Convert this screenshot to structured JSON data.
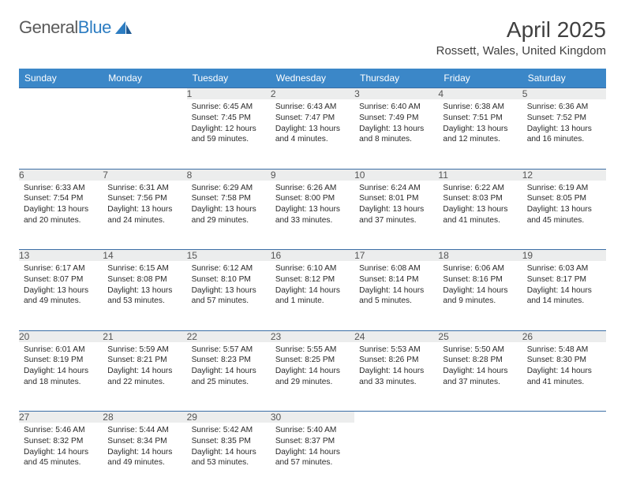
{
  "brand": {
    "text1": "General",
    "text2": "Blue"
  },
  "title": "April 2025",
  "location": "Rossett, Wales, United Kingdom",
  "colors": {
    "header_bg": "#3b87c8",
    "header_text": "#ffffff",
    "daynum_bg": "#eceded",
    "row_border": "#3b6ea5",
    "logo_blue": "#2d7dc2",
    "text": "#252525"
  },
  "day_headers": [
    "Sunday",
    "Monday",
    "Tuesday",
    "Wednesday",
    "Thursday",
    "Friday",
    "Saturday"
  ],
  "weeks": [
    [
      null,
      null,
      {
        "n": "1",
        "sr": "6:45 AM",
        "ss": "7:45 PM",
        "dl": "12 hours and 59 minutes."
      },
      {
        "n": "2",
        "sr": "6:43 AM",
        "ss": "7:47 PM",
        "dl": "13 hours and 4 minutes."
      },
      {
        "n": "3",
        "sr": "6:40 AM",
        "ss": "7:49 PM",
        "dl": "13 hours and 8 minutes."
      },
      {
        "n": "4",
        "sr": "6:38 AM",
        "ss": "7:51 PM",
        "dl": "13 hours and 12 minutes."
      },
      {
        "n": "5",
        "sr": "6:36 AM",
        "ss": "7:52 PM",
        "dl": "13 hours and 16 minutes."
      }
    ],
    [
      {
        "n": "6",
        "sr": "6:33 AM",
        "ss": "7:54 PM",
        "dl": "13 hours and 20 minutes."
      },
      {
        "n": "7",
        "sr": "6:31 AM",
        "ss": "7:56 PM",
        "dl": "13 hours and 24 minutes."
      },
      {
        "n": "8",
        "sr": "6:29 AM",
        "ss": "7:58 PM",
        "dl": "13 hours and 29 minutes."
      },
      {
        "n": "9",
        "sr": "6:26 AM",
        "ss": "8:00 PM",
        "dl": "13 hours and 33 minutes."
      },
      {
        "n": "10",
        "sr": "6:24 AM",
        "ss": "8:01 PM",
        "dl": "13 hours and 37 minutes."
      },
      {
        "n": "11",
        "sr": "6:22 AM",
        "ss": "8:03 PM",
        "dl": "13 hours and 41 minutes."
      },
      {
        "n": "12",
        "sr": "6:19 AM",
        "ss": "8:05 PM",
        "dl": "13 hours and 45 minutes."
      }
    ],
    [
      {
        "n": "13",
        "sr": "6:17 AM",
        "ss": "8:07 PM",
        "dl": "13 hours and 49 minutes."
      },
      {
        "n": "14",
        "sr": "6:15 AM",
        "ss": "8:08 PM",
        "dl": "13 hours and 53 minutes."
      },
      {
        "n": "15",
        "sr": "6:12 AM",
        "ss": "8:10 PM",
        "dl": "13 hours and 57 minutes."
      },
      {
        "n": "16",
        "sr": "6:10 AM",
        "ss": "8:12 PM",
        "dl": "14 hours and 1 minute."
      },
      {
        "n": "17",
        "sr": "6:08 AM",
        "ss": "8:14 PM",
        "dl": "14 hours and 5 minutes."
      },
      {
        "n": "18",
        "sr": "6:06 AM",
        "ss": "8:16 PM",
        "dl": "14 hours and 9 minutes."
      },
      {
        "n": "19",
        "sr": "6:03 AM",
        "ss": "8:17 PM",
        "dl": "14 hours and 14 minutes."
      }
    ],
    [
      {
        "n": "20",
        "sr": "6:01 AM",
        "ss": "8:19 PM",
        "dl": "14 hours and 18 minutes."
      },
      {
        "n": "21",
        "sr": "5:59 AM",
        "ss": "8:21 PM",
        "dl": "14 hours and 22 minutes."
      },
      {
        "n": "22",
        "sr": "5:57 AM",
        "ss": "8:23 PM",
        "dl": "14 hours and 25 minutes."
      },
      {
        "n": "23",
        "sr": "5:55 AM",
        "ss": "8:25 PM",
        "dl": "14 hours and 29 minutes."
      },
      {
        "n": "24",
        "sr": "5:53 AM",
        "ss": "8:26 PM",
        "dl": "14 hours and 33 minutes."
      },
      {
        "n": "25",
        "sr": "5:50 AM",
        "ss": "8:28 PM",
        "dl": "14 hours and 37 minutes."
      },
      {
        "n": "26",
        "sr": "5:48 AM",
        "ss": "8:30 PM",
        "dl": "14 hours and 41 minutes."
      }
    ],
    [
      {
        "n": "27",
        "sr": "5:46 AM",
        "ss": "8:32 PM",
        "dl": "14 hours and 45 minutes."
      },
      {
        "n": "28",
        "sr": "5:44 AM",
        "ss": "8:34 PM",
        "dl": "14 hours and 49 minutes."
      },
      {
        "n": "29",
        "sr": "5:42 AM",
        "ss": "8:35 PM",
        "dl": "14 hours and 53 minutes."
      },
      {
        "n": "30",
        "sr": "5:40 AM",
        "ss": "8:37 PM",
        "dl": "14 hours and 57 minutes."
      },
      null,
      null,
      null
    ]
  ],
  "labels": {
    "sunrise": "Sunrise: ",
    "sunset": "Sunset: ",
    "daylight": "Daylight: "
  }
}
